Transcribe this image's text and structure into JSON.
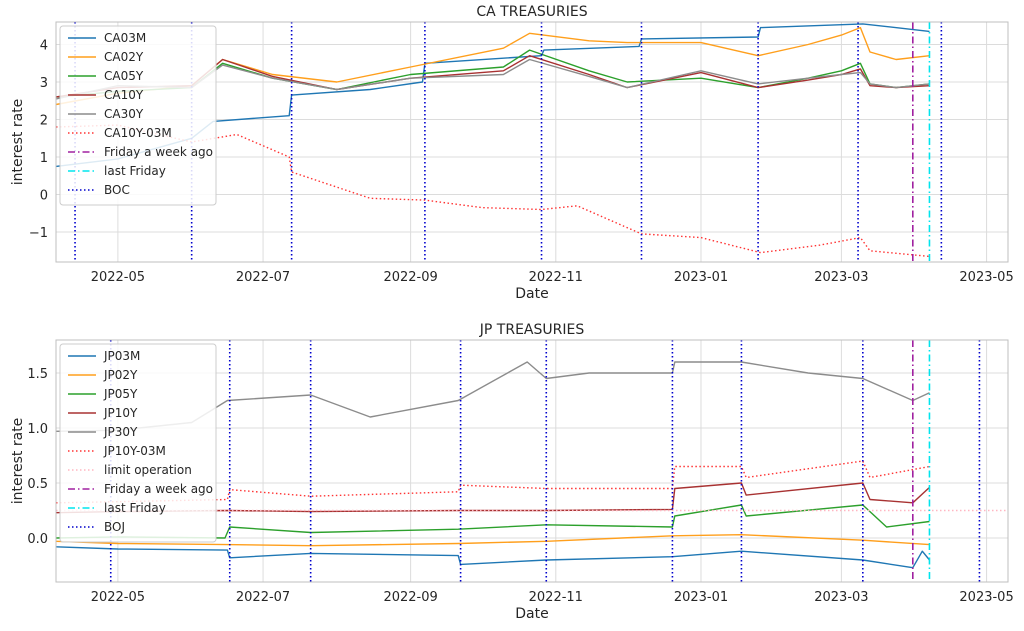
{
  "chart_data": [
    {
      "type": "line",
      "title": "CA TREASURIES",
      "xlabel": "Date",
      "ylabel": "interest rate",
      "x_ticks": [
        "2022-05",
        "2022-07",
        "2022-09",
        "2022-11",
        "2023-01",
        "2023-03",
        "2023-05"
      ],
      "y_ticks": [
        "−1",
        "0",
        "1",
        "2",
        "3",
        "4"
      ],
      "ylim": [
        -1.8,
        4.6
      ],
      "xlim": [
        "2022-04-05",
        "2023-05-10"
      ],
      "grid": true,
      "legend_position": "top-left",
      "series": [
        {
          "name": "CA03M",
          "color": "#1f77b4",
          "style": "solid",
          "x": [
            "2022-04-05",
            "2022-05-01",
            "2022-06-01",
            "2022-06-10",
            "2022-07-12",
            "2022-07-13",
            "2022-08-15",
            "2022-09-06",
            "2022-09-07",
            "2022-10-26",
            "2022-10-27",
            "2022-12-06",
            "2022-12-07",
            "2023-01-25",
            "2023-01-26",
            "2023-03-10",
            "2023-04-07"
          ],
          "values": [
            0.75,
            0.95,
            1.5,
            1.95,
            2.1,
            2.65,
            2.8,
            3.0,
            3.5,
            3.7,
            3.85,
            3.95,
            4.15,
            4.2,
            4.45,
            4.55,
            4.35
          ]
        },
        {
          "name": "CA02Y",
          "color": "#ff9f1c",
          "style": "solid",
          "x": [
            "2022-04-05",
            "2022-05-01",
            "2022-06-01",
            "2022-06-14",
            "2022-07-05",
            "2022-08-01",
            "2022-09-01",
            "2022-10-10",
            "2022-10-21",
            "2022-11-15",
            "2022-12-01",
            "2023-01-01",
            "2023-01-25",
            "2023-02-15",
            "2023-03-01",
            "2023-03-09",
            "2023-03-13",
            "2023-03-24",
            "2023-04-07"
          ],
          "values": [
            2.4,
            2.7,
            2.9,
            3.6,
            3.2,
            3.0,
            3.4,
            3.9,
            4.3,
            4.1,
            4.05,
            4.05,
            3.7,
            4.0,
            4.25,
            4.45,
            3.8,
            3.6,
            3.7
          ]
        },
        {
          "name": "CA05Y",
          "color": "#2ca02c",
          "style": "solid",
          "x": [
            "2022-04-05",
            "2022-05-01",
            "2022-06-01",
            "2022-06-14",
            "2022-07-05",
            "2022-08-01",
            "2022-09-01",
            "2022-10-10",
            "2022-10-21",
            "2022-11-15",
            "2022-12-01",
            "2023-01-01",
            "2023-01-25",
            "2023-02-15",
            "2023-03-01",
            "2023-03-09",
            "2023-03-13",
            "2023-03-24",
            "2023-04-07"
          ],
          "values": [
            2.6,
            2.75,
            2.85,
            3.5,
            3.1,
            2.8,
            3.2,
            3.4,
            3.85,
            3.3,
            3.0,
            3.1,
            2.85,
            3.1,
            3.3,
            3.5,
            2.95,
            2.85,
            2.95
          ]
        },
        {
          "name": "CA10Y",
          "color": "#a83232",
          "style": "solid",
          "x": [
            "2022-04-05",
            "2022-05-01",
            "2022-06-01",
            "2022-06-14",
            "2022-07-05",
            "2022-08-01",
            "2022-09-01",
            "2022-10-10",
            "2022-10-21",
            "2022-11-15",
            "2022-12-01",
            "2023-01-01",
            "2023-01-25",
            "2023-02-15",
            "2023-03-01",
            "2023-03-09",
            "2023-03-13",
            "2023-03-24",
            "2023-04-07"
          ],
          "values": [
            2.6,
            2.85,
            2.9,
            3.6,
            3.15,
            2.8,
            3.1,
            3.3,
            3.7,
            3.2,
            2.85,
            3.25,
            2.85,
            3.05,
            3.2,
            3.35,
            2.9,
            2.85,
            2.9
          ]
        },
        {
          "name": "CA30Y",
          "color": "#8c8c8c",
          "style": "solid",
          "x": [
            "2022-04-05",
            "2022-05-01",
            "2022-06-01",
            "2022-06-14",
            "2022-07-05",
            "2022-08-01",
            "2022-09-01",
            "2022-10-10",
            "2022-10-21",
            "2022-11-15",
            "2022-12-01",
            "2023-01-01",
            "2023-01-25",
            "2023-02-15",
            "2023-03-01",
            "2023-03-09",
            "2023-03-13",
            "2023-03-24",
            "2023-04-07"
          ],
          "values": [
            2.55,
            2.9,
            2.85,
            3.45,
            3.1,
            2.8,
            3.1,
            3.2,
            3.6,
            3.15,
            2.85,
            3.3,
            2.95,
            3.1,
            3.2,
            3.25,
            2.95,
            2.85,
            2.95
          ]
        },
        {
          "name": "CA10Y-03M",
          "color": "#ff3333",
          "style": "dotted",
          "x": [
            "2022-04-05",
            "2022-05-01",
            "2022-06-01",
            "2022-06-20",
            "2022-07-12",
            "2022-07-13",
            "2022-08-15",
            "2022-09-07",
            "2022-10-01",
            "2022-10-26",
            "2022-11-10",
            "2022-12-07",
            "2023-01-01",
            "2023-01-26",
            "2023-02-20",
            "2023-03-09",
            "2023-03-13",
            "2023-04-07"
          ],
          "values": [
            1.8,
            1.85,
            1.4,
            1.6,
            1.0,
            0.6,
            -0.1,
            -0.15,
            -0.35,
            -0.4,
            -0.3,
            -1.05,
            -1.15,
            -1.55,
            -1.35,
            -1.15,
            -1.5,
            -1.65
          ]
        }
      ],
      "vlines": [
        {
          "label": "Friday a week ago",
          "color": "#a020a0",
          "style": "dashdot",
          "x": [
            "2023-03-31"
          ]
        },
        {
          "label": "last Friday",
          "color": "#00e5ee",
          "style": "dashdot",
          "x": [
            "2023-04-07"
          ]
        },
        {
          "label": "BOC",
          "color": "#0000cc",
          "style": "dotted",
          "x": [
            "2022-04-13",
            "2022-06-01",
            "2022-07-13",
            "2022-09-07",
            "2022-10-26",
            "2022-12-07",
            "2023-01-25",
            "2023-03-08",
            "2023-04-12"
          ]
        }
      ]
    },
    {
      "type": "line",
      "title": "JP TREASURIES",
      "xlabel": "Date",
      "ylabel": "interest rate",
      "x_ticks": [
        "2022-05",
        "2022-07",
        "2022-09",
        "2022-11",
        "2023-01",
        "2023-03",
        "2023-05"
      ],
      "y_ticks": [
        "0.0",
        "0.5",
        "1.0",
        "1.5"
      ],
      "ylim": [
        -0.4,
        1.8
      ],
      "xlim": [
        "2022-04-05",
        "2023-05-10"
      ],
      "grid": true,
      "legend_position": "top-left",
      "series": [
        {
          "name": "JP03M",
          "color": "#1f77b4",
          "style": "solid",
          "x": [
            "2022-04-05",
            "2022-05-01",
            "2022-06-16",
            "2022-06-17",
            "2022-07-21",
            "2022-09-21",
            "2022-09-22",
            "2022-10-28",
            "2022-12-20",
            "2023-01-18",
            "2023-03-10",
            "2023-03-31",
            "2023-04-04",
            "2023-04-07"
          ],
          "values": [
            -0.08,
            -0.1,
            -0.11,
            -0.18,
            -0.14,
            -0.16,
            -0.24,
            -0.2,
            -0.17,
            -0.12,
            -0.2,
            -0.27,
            -0.12,
            -0.2
          ]
        },
        {
          "name": "JP02Y",
          "color": "#ff9f1c",
          "style": "solid",
          "x": [
            "2022-04-05",
            "2022-05-01",
            "2022-06-16",
            "2022-07-21",
            "2022-09-21",
            "2022-10-28",
            "2022-12-20",
            "2023-01-18",
            "2023-03-10",
            "2023-04-07"
          ],
          "values": [
            -0.03,
            -0.05,
            -0.06,
            -0.07,
            -0.05,
            -0.03,
            0.02,
            0.03,
            -0.02,
            -0.06
          ]
        },
        {
          "name": "JP05Y",
          "color": "#2ca02c",
          "style": "solid",
          "x": [
            "2022-04-05",
            "2022-05-01",
            "2022-06-15",
            "2022-06-17",
            "2022-07-21",
            "2022-09-21",
            "2022-10-28",
            "2022-12-20",
            "2022-12-21",
            "2023-01-18",
            "2023-01-20",
            "2023-03-10",
            "2023-03-20",
            "2023-04-07"
          ],
          "values": [
            0.0,
            0.01,
            0.0,
            0.1,
            0.05,
            0.08,
            0.12,
            0.1,
            0.2,
            0.3,
            0.2,
            0.3,
            0.1,
            0.15
          ]
        },
        {
          "name": "JP10Y",
          "color": "#a83232",
          "style": "solid",
          "x": [
            "2022-04-05",
            "2022-05-01",
            "2022-06-16",
            "2022-07-21",
            "2022-09-21",
            "2022-10-28",
            "2022-12-20",
            "2022-12-21",
            "2023-01-18",
            "2023-01-20",
            "2023-03-10",
            "2023-03-13",
            "2023-03-31",
            "2023-04-07"
          ],
          "values": [
            0.23,
            0.24,
            0.25,
            0.24,
            0.25,
            0.25,
            0.26,
            0.45,
            0.5,
            0.39,
            0.5,
            0.35,
            0.32,
            0.46
          ]
        },
        {
          "name": "JP30Y",
          "color": "#8c8c8c",
          "style": "solid",
          "x": [
            "2022-04-05",
            "2022-05-01",
            "2022-06-01",
            "2022-06-16",
            "2022-07-21",
            "2022-08-15",
            "2022-09-21",
            "2022-10-20",
            "2022-10-28",
            "2022-11-15",
            "2022-12-20",
            "2022-12-21",
            "2023-01-18",
            "2023-02-15",
            "2023-03-10",
            "2023-03-31",
            "2023-04-07"
          ],
          "values": [
            0.97,
            0.98,
            1.05,
            1.25,
            1.3,
            1.1,
            1.25,
            1.6,
            1.45,
            1.5,
            1.5,
            1.6,
            1.6,
            1.5,
            1.45,
            1.25,
            1.32
          ]
        },
        {
          "name": "JP10Y-03M",
          "color": "#ff3333",
          "style": "dotted",
          "x": [
            "2022-04-05",
            "2022-05-01",
            "2022-06-16",
            "2022-06-17",
            "2022-07-21",
            "2022-09-21",
            "2022-09-22",
            "2022-10-28",
            "2022-12-20",
            "2022-12-21",
            "2023-01-18",
            "2023-01-20",
            "2023-03-10",
            "2023-03-13",
            "2023-04-07"
          ],
          "values": [
            0.32,
            0.33,
            0.35,
            0.44,
            0.38,
            0.42,
            0.48,
            0.45,
            0.45,
            0.65,
            0.65,
            0.55,
            0.7,
            0.55,
            0.65
          ]
        },
        {
          "name": "limit operation",
          "color": "#ffb6c1",
          "style": "dotted",
          "x": [
            "2022-04-05",
            "2023-05-10"
          ],
          "values": [
            0.25,
            0.25
          ]
        }
      ],
      "vlines": [
        {
          "label": "Friday a week ago",
          "color": "#a020a0",
          "style": "dashdot",
          "x": [
            "2023-03-31"
          ]
        },
        {
          "label": "last Friday",
          "color": "#00e5ee",
          "style": "dashdot",
          "x": [
            "2023-04-07"
          ]
        },
        {
          "label": "BOJ",
          "color": "#0000cc",
          "style": "dotted",
          "x": [
            "2022-04-28",
            "2022-06-17",
            "2022-07-21",
            "2022-09-22",
            "2022-10-28",
            "2022-12-20",
            "2023-01-18",
            "2023-03-10",
            "2023-04-28"
          ]
        }
      ]
    }
  ]
}
